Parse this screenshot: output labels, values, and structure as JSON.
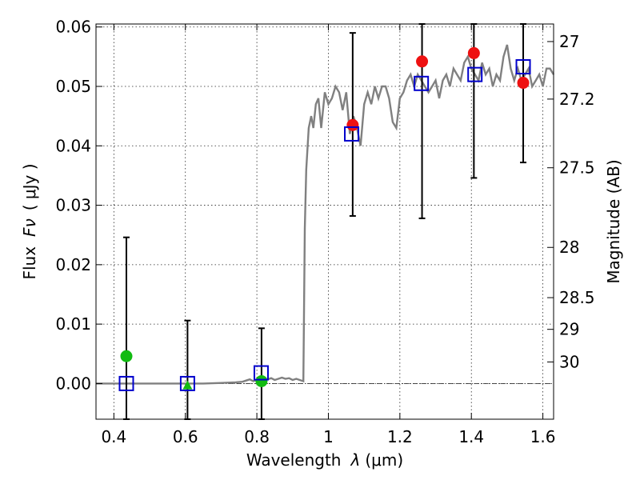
{
  "chart_data": {
    "type": "scatter",
    "xlabel_text": "Wavelength",
    "xlabel_math": "λ",
    "xlabel_unit": "(μm)",
    "ylabel_text": "Flux",
    "ylabel_math": "Fν",
    "ylabel_unit": "( μJy )",
    "y2label": "Magnitude (AB)",
    "xlim": [
      0.35,
      1.63
    ],
    "ylim": [
      -0.006,
      0.0605
    ],
    "xticks": [
      0.4,
      0.6,
      0.8,
      1.0,
      1.2,
      1.4,
      1.6
    ],
    "xtick_labels": [
      "0.4",
      "0.6",
      "0.8",
      "1",
      "1.2",
      "1.4",
      "1.6"
    ],
    "yticks": [
      0.0,
      0.01,
      0.02,
      0.03,
      0.04,
      0.05,
      0.06
    ],
    "ytick_labels": [
      "0.00",
      "0.01",
      "0.02",
      "0.03",
      "0.04",
      "0.05",
      "0.06"
    ],
    "mag_ticks": [
      {
        "label": "27",
        "mag": 27.0
      },
      {
        "label": "27.2",
        "mag": 27.2
      },
      {
        "label": "27.5",
        "mag": 27.5
      },
      {
        "label": "28",
        "mag": 28.0
      },
      {
        "label": "28.5",
        "mag": 28.5
      },
      {
        "label": "29",
        "mag": 29.0
      },
      {
        "label": "30",
        "mag": 30.0
      }
    ],
    "grid": true,
    "colors": {
      "template": "#808080",
      "model_squares": "#0000cc",
      "detections": "#ee1111",
      "nondetections": "#11bb11",
      "errorbars": "#000000",
      "zero_line": "#333333"
    },
    "template_spectrum": {
      "x": [
        0.35,
        0.4,
        0.45,
        0.5,
        0.55,
        0.6,
        0.65,
        0.7,
        0.74,
        0.76,
        0.77,
        0.78,
        0.79,
        0.8,
        0.81,
        0.82,
        0.83,
        0.84,
        0.85,
        0.86,
        0.87,
        0.88,
        0.89,
        0.9,
        0.91,
        0.92,
        0.93,
        0.934,
        0.938,
        0.945,
        0.952,
        0.958,
        0.965,
        0.972,
        0.98,
        0.99,
        1.0,
        1.01,
        1.02,
        1.03,
        1.04,
        1.05,
        1.06,
        1.07,
        1.08,
        1.09,
        1.1,
        1.11,
        1.12,
        1.13,
        1.14,
        1.15,
        1.16,
        1.17,
        1.18,
        1.19,
        1.2,
        1.21,
        1.22,
        1.23,
        1.24,
        1.25,
        1.26,
        1.27,
        1.28,
        1.29,
        1.3,
        1.31,
        1.32,
        1.33,
        1.34,
        1.35,
        1.36,
        1.37,
        1.38,
        1.39,
        1.4,
        1.41,
        1.42,
        1.43,
        1.44,
        1.45,
        1.46,
        1.47,
        1.48,
        1.49,
        1.5,
        1.51,
        1.52,
        1.53,
        1.54,
        1.55,
        1.56,
        1.57,
        1.58,
        1.59,
        1.6,
        1.61,
        1.62,
        1.63
      ],
      "y": [
        0,
        0,
        0,
        0,
        0,
        0,
        0,
        0.0001,
        0.0002,
        0.0003,
        0.0005,
        0.0007,
        0.0004,
        0.0006,
        0.0008,
        0.0005,
        0.0007,
        0.0009,
        0.0006,
        0.0008,
        0.001,
        0.0008,
        0.0009,
        0.0006,
        0.0008,
        0.0006,
        0.0004,
        0.026,
        0.036,
        0.043,
        0.045,
        0.043,
        0.047,
        0.048,
        0.043,
        0.049,
        0.047,
        0.048,
        0.05,
        0.049,
        0.046,
        0.049,
        0.042,
        0.045,
        0.043,
        0.04,
        0.047,
        0.049,
        0.047,
        0.05,
        0.048,
        0.05,
        0.05,
        0.048,
        0.044,
        0.043,
        0.048,
        0.049,
        0.051,
        0.052,
        0.05,
        0.052,
        0.051,
        0.05,
        0.049,
        0.05,
        0.051,
        0.048,
        0.051,
        0.052,
        0.05,
        0.053,
        0.052,
        0.051,
        0.054,
        0.055,
        0.053,
        0.052,
        0.051,
        0.054,
        0.052,
        0.053,
        0.05,
        0.052,
        0.051,
        0.055,
        0.057,
        0.053,
        0.051,
        0.053,
        0.051,
        0.052,
        0.053,
        0.05,
        0.051,
        0.052,
        0.05,
        0.053,
        0.053,
        0.052
      ]
    },
    "model_photometry": {
      "x": [
        0.435,
        0.606,
        0.812,
        1.065,
        1.26,
        1.41,
        1.545
      ],
      "y": [
        0.0,
        0.0,
        0.0018,
        0.042,
        0.0505,
        0.052,
        0.0533
      ]
    },
    "detections": {
      "x": [
        1.068,
        1.262,
        1.407,
        1.545
      ],
      "y": [
        0.0435,
        0.0542,
        0.0556,
        0.0506
      ],
      "ylow": [
        0.0282,
        0.0278,
        0.0346,
        0.0372
      ],
      "yhigh": [
        0.059,
        0.0605,
        0.0605,
        0.0605
      ]
    },
    "nondetections": {
      "x": [
        0.435,
        0.606,
        0.813
      ],
      "y": [
        0.0046,
        -0.0003,
        0.0004
      ],
      "markers": [
        "circle",
        "triangle",
        "circle"
      ],
      "ylow": [
        -0.006,
        -0.006,
        -0.006
      ],
      "yhigh": [
        0.0246,
        0.0106,
        0.0093
      ]
    }
  }
}
